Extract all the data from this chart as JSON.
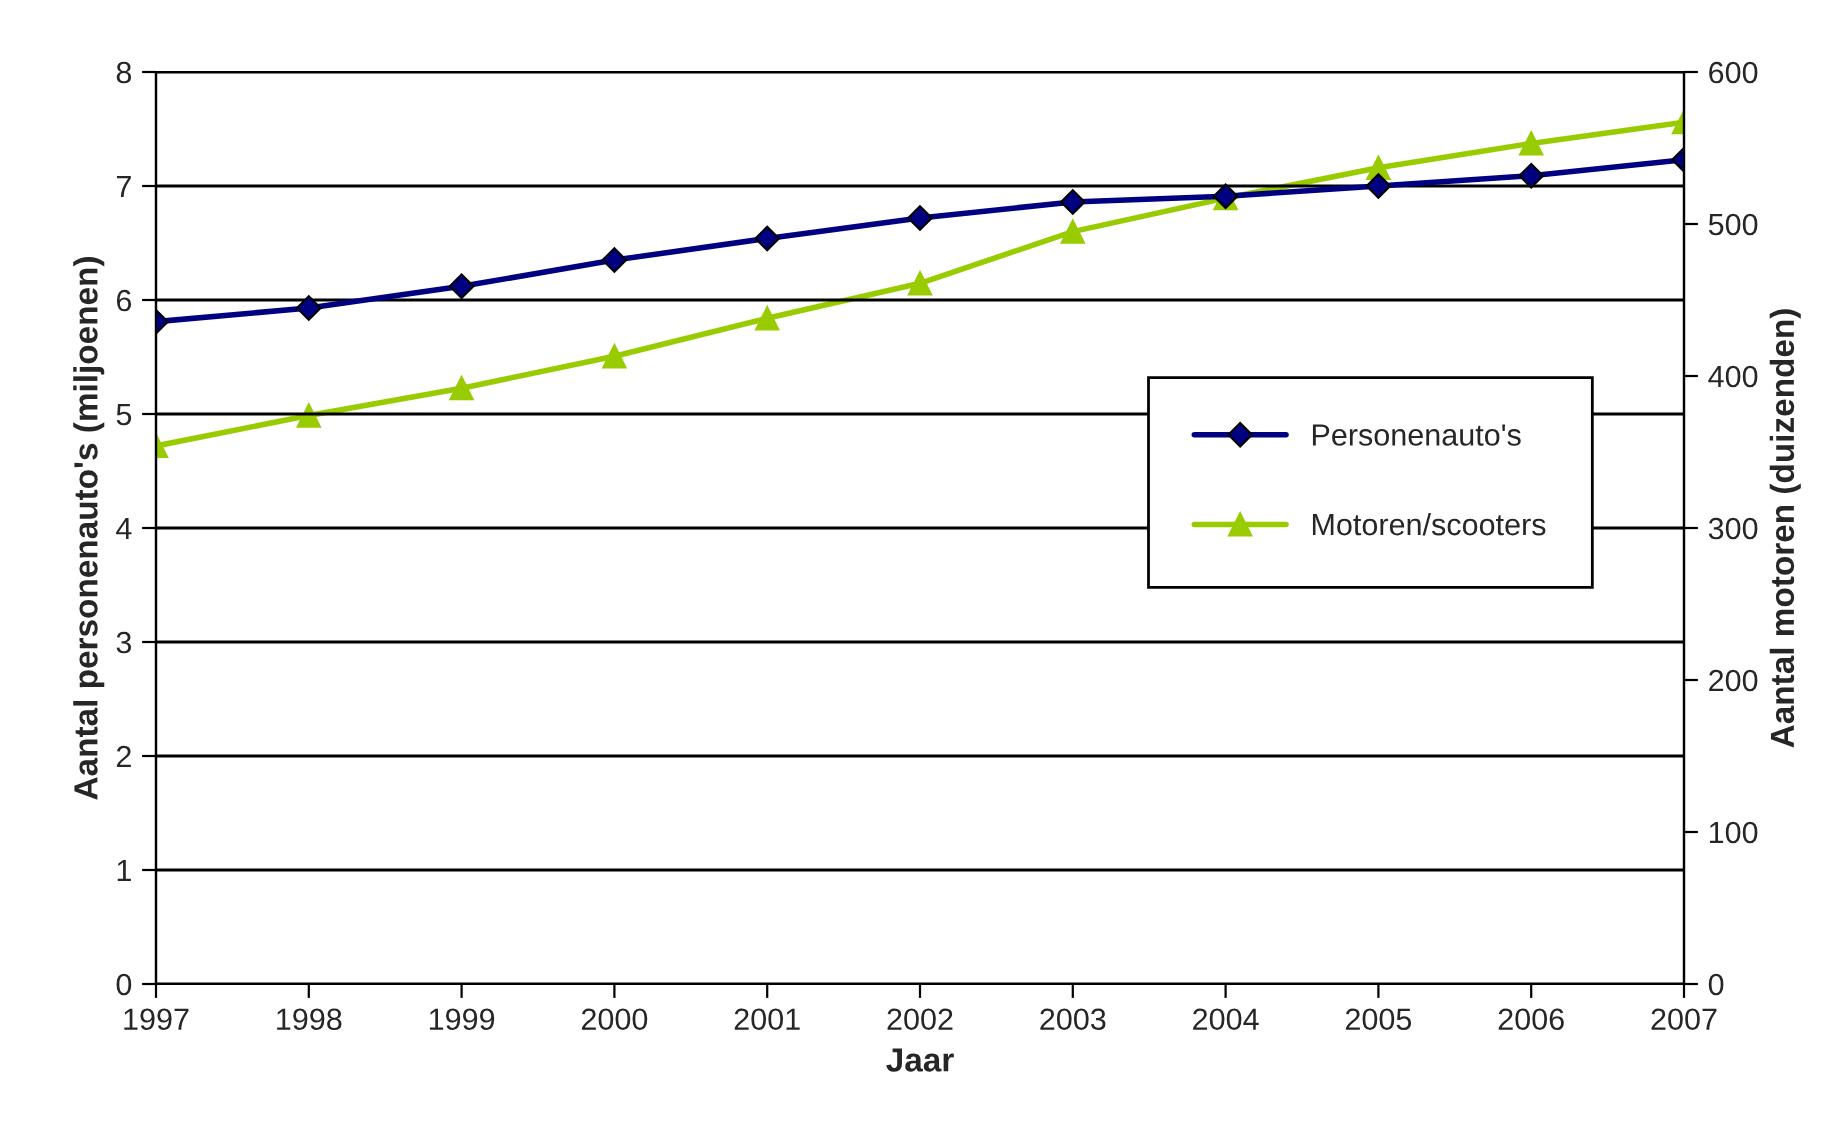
{
  "chart_data": {
    "type": "line",
    "xlabel": "Jaar",
    "ylabel": "Aantal personenauto's (miljoenen)",
    "y2label": "Aantal motoren (duizenden)",
    "categories": [
      "1997",
      "1998",
      "1999",
      "2000",
      "2001",
      "2002",
      "2003",
      "2004",
      "2005",
      "2006",
      "2007"
    ],
    "series": [
      {
        "name": "Personenauto's",
        "color": "#000080",
        "marker": "diamond",
        "values": [
          5.81,
          5.93,
          6.12,
          6.35,
          6.54,
          6.72,
          6.86,
          6.91,
          7.0,
          7.09,
          7.23
        ]
      },
      {
        "name": "Motoren/scooters",
        "color": "#99cc00",
        "marker": "triangle",
        "axis": "y2",
        "values": [
          354,
          374,
          392,
          413,
          438,
          461,
          495,
          517,
          537,
          553,
          567
        ]
      }
    ],
    "ylim": [
      0,
      8
    ],
    "yticks": [
      0,
      1,
      2,
      3,
      4,
      5,
      6,
      7,
      8
    ],
    "y2lim": [
      0,
      600
    ],
    "y2ticks": [
      0,
      100,
      200,
      300,
      400,
      500,
      600
    ],
    "grid": "y",
    "legend": "right"
  }
}
